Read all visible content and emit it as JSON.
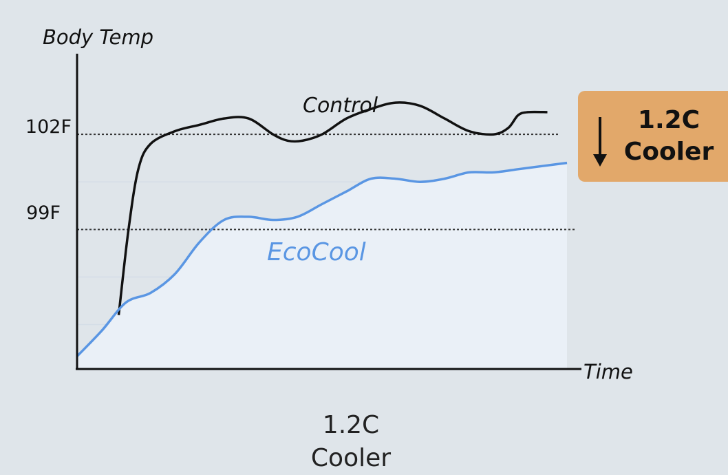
{
  "chart_data": {
    "type": "line",
    "xlabel": "Time",
    "ylabel": "Body Temp",
    "yticks": [
      {
        "label": "102F",
        "value": 102
      },
      {
        "label": "99F",
        "value": 99
      }
    ],
    "ylim": [
      94.6,
      104.5
    ],
    "xlim": [
      0,
      1
    ],
    "series": [
      {
        "name": "Control",
        "color": "#111111",
        "x": [
          0.085,
          0.105,
          0.125,
          0.15,
          0.2,
          0.25,
          0.3,
          0.35,
          0.4,
          0.43,
          0.46,
          0.5,
          0.55,
          0.6,
          0.65,
          0.7,
          0.75,
          0.8,
          0.85,
          0.88,
          0.9,
          0.92,
          0.96
        ],
        "y": [
          96.3,
          99.0,
          100.9,
          101.7,
          102.1,
          102.3,
          102.5,
          102.5,
          102.0,
          101.8,
          101.8,
          102.0,
          102.5,
          102.8,
          103.0,
          102.9,
          102.5,
          102.1,
          102.0,
          102.2,
          102.6,
          102.7,
          102.7
        ]
      },
      {
        "name": "EcoCool",
        "color": "#5a96e3",
        "x": [
          0,
          0.05,
          0.1,
          0.15,
          0.2,
          0.25,
          0.3,
          0.35,
          0.4,
          0.45,
          0.5,
          0.55,
          0.6,
          0.65,
          0.7,
          0.75,
          0.8,
          0.85,
          0.9,
          0.95,
          1.0
        ],
        "y": [
          95.0,
          95.8,
          96.7,
          97.0,
          97.6,
          98.6,
          99.3,
          99.4,
          99.3,
          99.4,
          99.8,
          100.2,
          100.6,
          100.6,
          100.5,
          100.6,
          100.8,
          100.8,
          100.9,
          101.0,
          101.1
        ]
      }
    ],
    "annotation": {
      "line1": "1.2C",
      "line2": "Cooler",
      "color": "#e2a86a"
    }
  },
  "footer": {
    "line1": "1.2C",
    "line2": "Cooler"
  }
}
